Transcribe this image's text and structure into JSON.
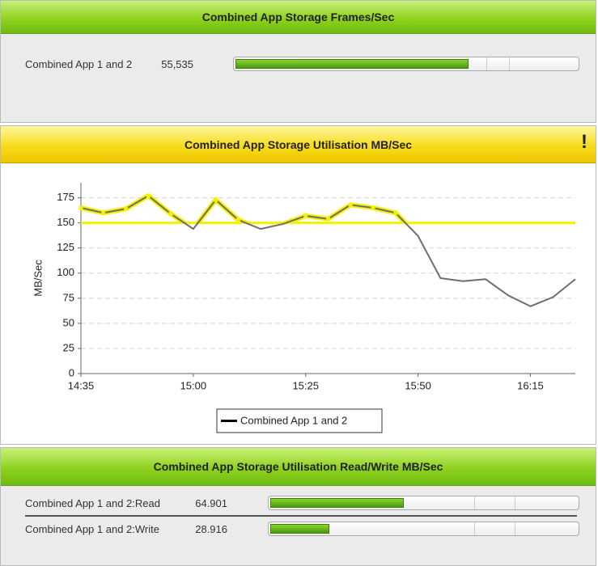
{
  "panels": [
    {
      "title": "Combined App Storage Frames/Sec",
      "meters": [
        {
          "label": "Combined App 1 and 2",
          "value": 55535,
          "value_label": "55,535",
          "xlim": [
            0,
            81700
          ]
        }
      ]
    },
    {
      "title": "Combined App Storage Utilisation MB/Sec",
      "alert": "!",
      "chart_data": {
        "type": "line",
        "categories": [
          "14:35",
          null,
          null,
          null,
          null,
          "15:00",
          null,
          null,
          null,
          null,
          "15:25",
          null,
          null,
          null,
          null,
          "15:50",
          null,
          null,
          null,
          null,
          "16:15",
          null,
          null
        ],
        "series": [
          {
            "name": "Combined App 1 and 2",
            "color": "#6e6e6e",
            "values": [
              165,
              160,
              164,
              177,
              159,
              144,
              173,
              153,
              144,
              149,
              157,
              154,
              168,
              165,
              160,
              137,
              95,
              92,
              94,
              78,
              67,
              76,
              94
            ]
          }
        ],
        "threshold": 150,
        "threshold_color": "#f5f000",
        "ylabel": "MB/Sec",
        "ylim": [
          0,
          190
        ],
        "yticks": [
          0,
          25,
          50,
          75,
          100,
          125,
          150,
          175
        ],
        "grid": true,
        "legend": "bottom"
      }
    },
    {
      "title": "Combined App Storage Utilisation Read/Write MB/Sec",
      "meters": [
        {
          "label": "Combined App 1 and 2:Read",
          "value": 64.901,
          "xlim": [
            0,
            150
          ]
        },
        {
          "label": "Combined App 1 and 2:Write",
          "value": 28.916,
          "xlim": [
            0,
            150
          ]
        }
      ]
    }
  ]
}
